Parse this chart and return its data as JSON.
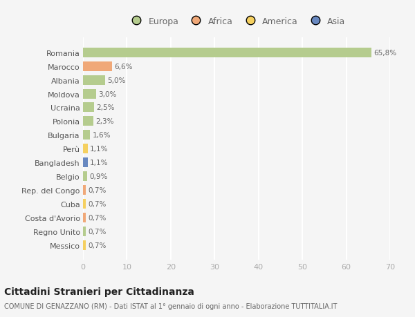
{
  "categories": [
    "Romania",
    "Marocco",
    "Albania",
    "Moldova",
    "Ucraina",
    "Polonia",
    "Bulgaria",
    "Perù",
    "Bangladesh",
    "Belgio",
    "Rep. del Congo",
    "Cuba",
    "Costa d'Avorio",
    "Regno Unito",
    "Messico"
  ],
  "values": [
    65.8,
    6.6,
    5.0,
    3.0,
    2.5,
    2.3,
    1.6,
    1.1,
    1.1,
    0.9,
    0.7,
    0.7,
    0.7,
    0.7,
    0.7
  ],
  "labels": [
    "65,8%",
    "6,6%",
    "5,0%",
    "3,0%",
    "2,5%",
    "2,3%",
    "1,6%",
    "1,1%",
    "1,1%",
    "0,9%",
    "0,7%",
    "0,7%",
    "0,7%",
    "0,7%",
    "0,7%"
  ],
  "bar_colors": [
    "#b5cc8e",
    "#f0a878",
    "#b5cc8e",
    "#b5cc8e",
    "#b5cc8e",
    "#b5cc8e",
    "#b5cc8e",
    "#f5d060",
    "#6888c0",
    "#b5cc8e",
    "#f0a878",
    "#f5d060",
    "#f0a878",
    "#b5cc8e",
    "#f5d060"
  ],
  "legend_labels": [
    "Europa",
    "Africa",
    "America",
    "Asia"
  ],
  "legend_colors": [
    "#b5cc8e",
    "#f0a878",
    "#f5d060",
    "#6888c0"
  ],
  "title": "Cittadini Stranieri per Cittadinanza",
  "subtitle": "COMUNE DI GENAZZANO (RM) - Dati ISTAT al 1° gennaio di ogni anno - Elaborazione TUTTITALIA.IT",
  "xlim": [
    0,
    70
  ],
  "xticks": [
    0,
    10,
    20,
    30,
    40,
    50,
    60,
    70
  ],
  "bg_color": "#f5f5f5",
  "grid_color": "#ffffff",
  "bar_height": 0.7
}
